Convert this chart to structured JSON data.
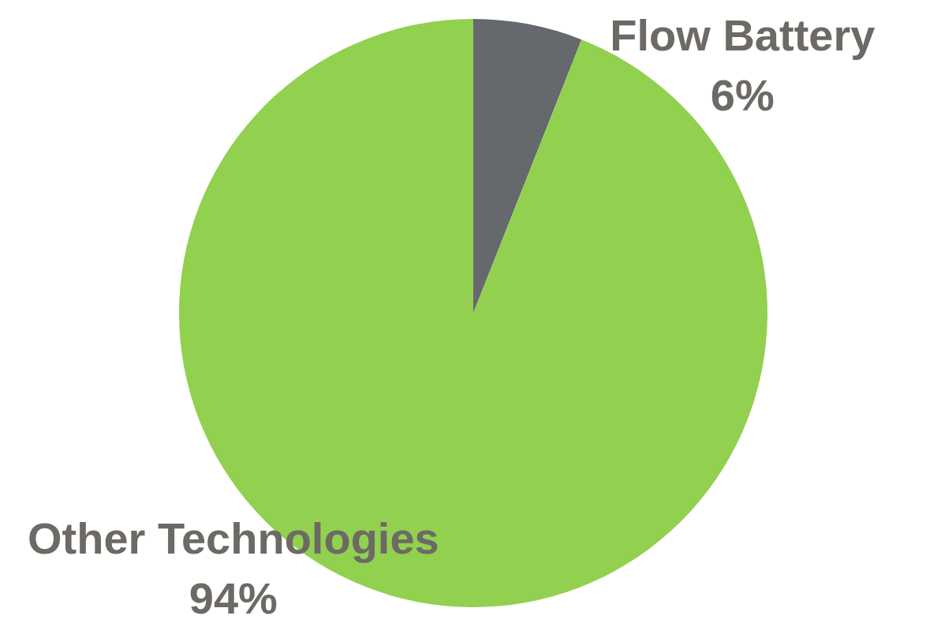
{
  "chart_data": {
    "type": "pie",
    "categories": [
      "Flow Battery",
      "Other Technologies"
    ],
    "values": [
      6,
      94
    ],
    "colors": [
      "#65686c",
      "#92d050"
    ],
    "value_labels": [
      "6%",
      "94%"
    ],
    "legend": false
  }
}
